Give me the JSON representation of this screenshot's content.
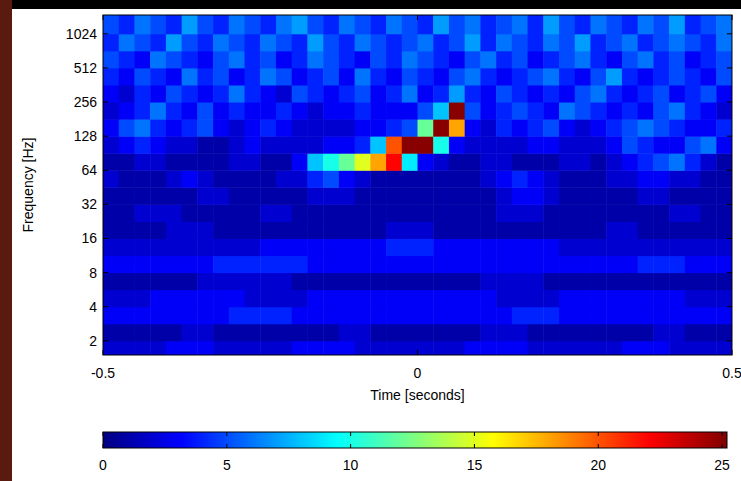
{
  "chart_data": {
    "type": "heatmap",
    "x_label": "Time [seconds]",
    "y_label": "Frequency [Hz]",
    "xlim": [
      -0.5,
      0.5
    ],
    "xticks": [
      -0.5,
      0,
      0.5
    ],
    "ylim": [
      1.5,
      1500
    ],
    "yticks": [
      2,
      4,
      8,
      16,
      32,
      64,
      128,
      256,
      512,
      1024
    ],
    "log": "y",
    "time_edges": [
      -0.5,
      -0.475,
      -0.45,
      -0.425,
      -0.4,
      -0.375,
      -0.35,
      -0.325,
      -0.3,
      -0.275,
      -0.25,
      -0.225,
      -0.2,
      -0.175,
      -0.15,
      -0.125,
      -0.1,
      -0.075,
      -0.05,
      -0.025,
      0,
      0.025,
      0.05,
      0.075,
      0.1,
      0.125,
      0.15,
      0.175,
      0.2,
      0.225,
      0.25,
      0.275,
      0.3,
      0.325,
      0.35,
      0.375,
      0.4,
      0.425,
      0.45,
      0.475,
      0.5
    ],
    "freq_edges": [
      1.5,
      2,
      2.83,
      4,
      5.66,
      8,
      11.3,
      16,
      22.6,
      32,
      45.3,
      64,
      90.5,
      128,
      181,
      256,
      362,
      512,
      724,
      1024,
      1500
    ],
    "cells": [
      [
        2,
        2,
        2,
        2,
        3,
        3,
        3,
        2,
        2,
        2,
        2,
        2,
        3,
        3,
        3,
        3,
        2,
        2,
        2,
        2,
        2,
        2,
        2,
        3,
        3,
        3,
        3,
        2,
        2,
        2,
        2,
        2,
        2,
        3,
        3,
        3,
        2,
        2,
        2,
        2
      ],
      [
        1,
        1,
        1,
        1,
        1,
        2,
        2,
        1,
        1,
        1,
        1,
        1,
        1,
        1,
        1,
        2,
        2,
        1,
        1,
        1,
        1,
        1,
        1,
        1,
        2,
        2,
        2,
        1,
        1,
        1,
        1,
        1,
        1,
        1,
        1,
        2,
        2,
        1,
        1,
        1
      ],
      [
        3,
        3,
        3,
        3,
        3,
        3,
        3,
        3,
        4,
        4,
        4,
        4,
        3,
        3,
        3,
        3,
        3,
        3,
        3,
        3,
        3,
        3,
        3,
        3,
        3,
        3,
        4,
        4,
        4,
        3,
        3,
        3,
        3,
        3,
        3,
        3,
        3,
        3,
        3,
        3
      ],
      [
        2,
        2,
        2,
        3,
        3,
        3,
        3,
        3,
        3,
        2,
        2,
        2,
        2,
        3,
        3,
        3,
        3,
        3,
        3,
        3,
        3,
        3,
        3,
        3,
        3,
        2,
        2,
        2,
        2,
        3,
        3,
        3,
        3,
        3,
        3,
        3,
        3,
        2,
        2,
        2
      ],
      [
        1,
        1,
        1,
        1,
        1,
        1,
        2,
        2,
        2,
        2,
        2,
        2,
        1,
        1,
        1,
        1,
        1,
        1,
        1,
        1,
        1,
        1,
        1,
        1,
        2,
        2,
        2,
        2,
        1,
        1,
        1,
        1,
        1,
        1,
        1,
        1,
        1,
        1,
        1,
        1
      ],
      [
        3,
        3,
        3,
        3,
        3,
        3,
        3,
        4,
        4,
        4,
        4,
        4,
        4,
        3,
        3,
        3,
        3,
        3,
        3,
        3,
        3,
        3,
        3,
        3,
        3,
        3,
        3,
        3,
        3,
        3,
        3,
        3,
        3,
        3,
        4,
        4,
        4,
        3,
        3,
        3
      ],
      [
        2,
        2,
        2,
        2,
        2,
        2,
        2,
        2,
        2,
        2,
        3,
        3,
        3,
        3,
        3,
        3,
        3,
        3,
        4,
        4,
        4,
        3,
        3,
        3,
        3,
        3,
        3,
        3,
        3,
        2,
        2,
        2,
        2,
        2,
        2,
        2,
        2,
        2,
        2,
        2
      ],
      [
        1,
        1,
        1,
        1,
        2,
        2,
        2,
        1,
        1,
        1,
        1,
        1,
        1,
        1,
        1,
        1,
        1,
        1,
        2,
        2,
        2,
        1,
        1,
        1,
        1,
        1,
        1,
        1,
        1,
        1,
        1,
        1,
        2,
        2,
        1,
        1,
        1,
        1,
        1,
        1
      ],
      [
        1,
        1,
        2,
        2,
        2,
        1,
        1,
        1,
        1,
        1,
        2,
        2,
        1,
        1,
        1,
        1,
        1,
        1,
        1,
        1,
        1,
        1,
        1,
        1,
        1,
        2,
        2,
        2,
        1,
        1,
        1,
        1,
        1,
        1,
        1,
        1,
        2,
        2,
        1,
        1
      ],
      [
        1,
        1,
        1,
        1,
        1,
        1,
        2,
        2,
        1,
        1,
        1,
        1,
        1,
        2,
        2,
        2,
        1,
        1,
        1,
        1,
        1,
        1,
        1,
        1,
        1,
        2,
        3,
        3,
        2,
        1,
        1,
        1,
        1,
        1,
        2,
        2,
        1,
        1,
        1,
        1
      ],
      [
        2,
        1,
        1,
        1,
        2,
        3,
        2,
        1,
        1,
        1,
        1,
        2,
        2,
        4,
        5,
        3,
        2,
        1,
        1,
        1,
        1,
        1,
        1,
        1,
        2,
        3,
        4,
        3,
        2,
        1,
        1,
        1,
        2,
        2,
        3,
        3,
        2,
        2,
        1,
        1
      ],
      [
        1,
        1,
        2,
        2,
        1,
        1,
        1,
        1,
        2,
        2,
        1,
        1,
        3,
        8,
        10,
        12,
        15,
        18,
        22,
        9,
        3,
        2,
        1,
        1,
        2,
        2,
        1,
        1,
        1,
        2,
        2,
        1,
        2,
        3,
        4,
        5,
        6,
        4,
        2,
        1
      ],
      [
        2,
        3,
        4,
        3,
        2,
        2,
        1,
        1,
        2,
        3,
        2,
        2,
        2,
        2,
        3,
        3,
        4,
        8,
        20,
        25,
        25,
        10,
        3,
        2,
        2,
        2,
        2,
        3,
        3,
        2,
        2,
        2,
        3,
        5,
        4,
        3,
        3,
        5,
        6,
        3
      ],
      [
        3,
        5,
        6,
        4,
        3,
        4,
        5,
        3,
        2,
        3,
        4,
        3,
        2,
        2,
        2,
        2,
        3,
        3,
        4,
        5,
        12,
        25,
        18,
        3,
        2,
        4,
        3,
        4,
        5,
        3,
        2,
        3,
        4,
        5,
        6,
        5,
        4,
        3,
        3,
        4
      ],
      [
        2,
        3,
        4,
        6,
        4,
        3,
        5,
        3,
        4,
        3,
        3,
        4,
        3,
        2,
        3,
        3,
        4,
        3,
        3,
        3,
        5,
        8,
        25,
        5,
        3,
        4,
        5,
        4,
        3,
        6,
        5,
        4,
        3,
        4,
        3,
        5,
        6,
        4,
        3,
        2
      ],
      [
        3,
        2,
        4,
        3,
        5,
        4,
        3,
        4,
        6,
        4,
        3,
        2,
        5,
        4,
        3,
        4,
        5,
        3,
        4,
        6,
        3,
        4,
        7,
        4,
        3,
        5,
        4,
        3,
        4,
        3,
        5,
        6,
        4,
        3,
        4,
        5,
        3,
        4,
        5,
        3
      ],
      [
        4,
        3,
        5,
        4,
        3,
        6,
        4,
        5,
        3,
        4,
        6,
        5,
        3,
        4,
        5,
        3,
        6,
        4,
        3,
        5,
        4,
        3,
        5,
        6,
        4,
        3,
        4,
        5,
        6,
        4,
        3,
        5,
        7,
        4,
        3,
        4,
        5,
        4,
        3,
        5
      ],
      [
        5,
        4,
        3,
        6,
        5,
        4,
        3,
        5,
        6,
        4,
        5,
        3,
        4,
        6,
        5,
        4,
        3,
        5,
        4,
        6,
        5,
        4,
        3,
        5,
        6,
        4,
        5,
        3,
        4,
        5,
        6,
        4,
        3,
        5,
        6,
        4,
        5,
        3,
        4,
        5
      ],
      [
        4,
        6,
        5,
        4,
        7,
        5,
        4,
        6,
        5,
        4,
        6,
        5,
        4,
        7,
        5,
        4,
        6,
        5,
        4,
        5,
        6,
        4,
        5,
        7,
        4,
        6,
        5,
        4,
        6,
        5,
        7,
        4,
        5,
        6,
        4,
        5,
        6,
        5,
        4,
        6
      ],
      [
        5,
        4,
        6,
        5,
        4,
        7,
        5,
        4,
        6,
        5,
        4,
        6,
        7,
        5,
        4,
        6,
        5,
        4,
        6,
        5,
        4,
        7,
        5,
        6,
        4,
        5,
        6,
        4,
        7,
        5,
        4,
        6,
        5,
        4,
        6,
        5,
        7,
        4,
        5,
        6
      ]
    ],
    "color_range": [
      0,
      25.2
    ],
    "color_ticks": [
      0,
      5,
      10,
      15,
      20,
      25
    ]
  }
}
